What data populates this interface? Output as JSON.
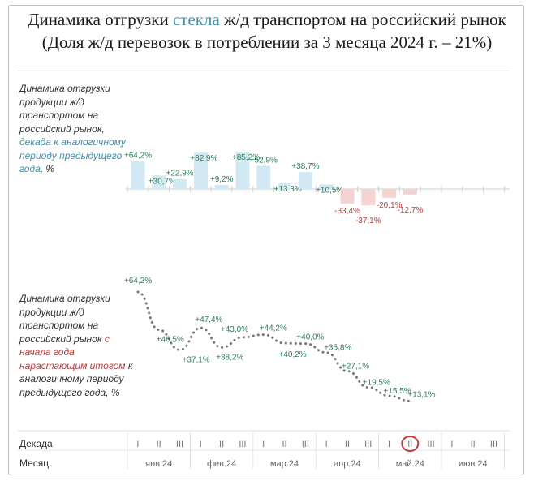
{
  "title": {
    "line1_before": "Динамика отгрузки ",
    "line1_accent": "стекла",
    "line1_after": " ж/д транспортом на российский рынок",
    "line2": "(Доля ж/д перевозок в потреблении за 3 месяца 2024 г. – 21%)"
  },
  "colors": {
    "positive_bar": "#d2e8f3",
    "negative_bar": "#f6d3d3",
    "positive_text": "#2e7d5b",
    "negative_text": "#c0393b",
    "line": "#777777",
    "highlight": "#c0393b"
  },
  "chart_data": [
    {
      "type": "bar",
      "label_parts": {
        "text": "Динамика отгрузки продукции ж/д транспортом на российский рынок,",
        "accent": "декада к аналогичному периоду предыдущего года",
        "suffix": ", %"
      },
      "values": [
        64.2,
        30.7,
        22.9,
        82.9,
        9.2,
        85.2,
        52.9,
        13.3,
        38.7,
        10.5,
        -33.4,
        -37.1,
        -20.1,
        -12.7
      ],
      "value_labels": [
        "+64,2%",
        "+30,7%",
        "+22,9%",
        "+82,9%",
        "+9,2%",
        "+85,2%",
        "+52,9%",
        "+13,3%",
        "+38,7%",
        "+10,5%",
        "-33,4%",
        "-37,1%",
        "-20,1%",
        "-12,7%"
      ]
    },
    {
      "type": "line",
      "label_parts": {
        "text": "Динамика отгрузки продукции ж/д транспортом на российский рынок",
        "accent": "с начала года нарастающим итогом",
        "suffix": "к аналогичному периоду предыдущего года, %"
      },
      "values": [
        64.2,
        46.5,
        37.1,
        47.4,
        38.2,
        43.0,
        44.2,
        40.2,
        40.0,
        35.8,
        27.1,
        19.5,
        15.5,
        13.1
      ],
      "value_labels": [
        "+64,2%",
        "+46,5%",
        "+37,1%",
        "+47,4%",
        "+38,2%",
        "+43,0%",
        "+44,2%",
        "+40,2%",
        "+40,0%",
        "+35,8%",
        "+27,1%",
        "+19,5%",
        "+15,5%",
        "+13,1%"
      ]
    }
  ],
  "axis": {
    "decade_title": "Декада",
    "month_title": "Месяц",
    "decades": [
      "I",
      "II",
      "III"
    ],
    "months": [
      "янв.24",
      "фев.24",
      "мар.24",
      "апр.24",
      "май.24",
      "июн.24"
    ],
    "highlighted_decade_index": 13
  }
}
